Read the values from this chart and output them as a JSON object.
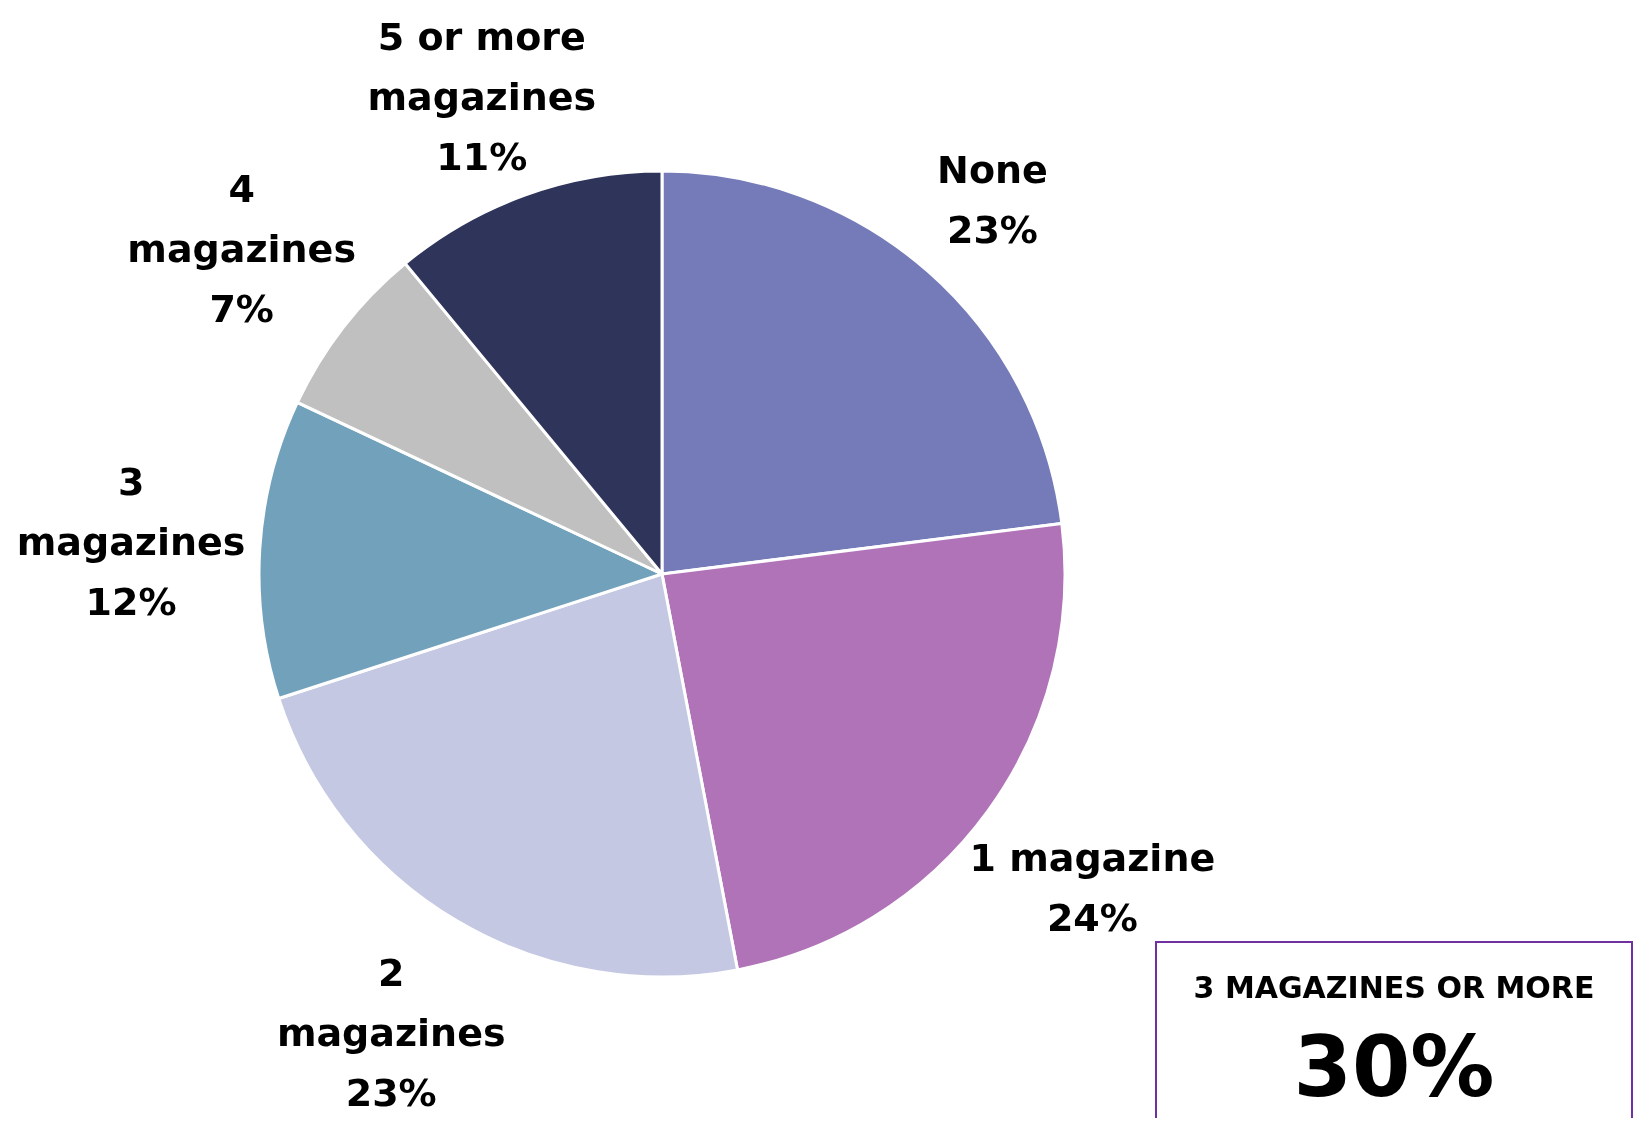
{
  "chart_data": {
    "type": "pie",
    "categories": [
      "None",
      "1 magazine",
      "2 magazines",
      "3 magazines",
      "4 magazines",
      "5 or more magazines"
    ],
    "values": [
      23,
      24,
      23,
      12,
      7,
      11
    ],
    "value_labels": [
      "23%",
      "24%",
      "23%",
      "12%",
      "7%",
      "11%"
    ],
    "colors": [
      "#747bb8",
      "#b173b8",
      "#c5c8e2",
      "#72a1bb",
      "#c0c0c0",
      "#2f345b"
    ],
    "annotations": [
      "3 MAGAZINES OR MORE",
      "30%"
    ]
  }
}
